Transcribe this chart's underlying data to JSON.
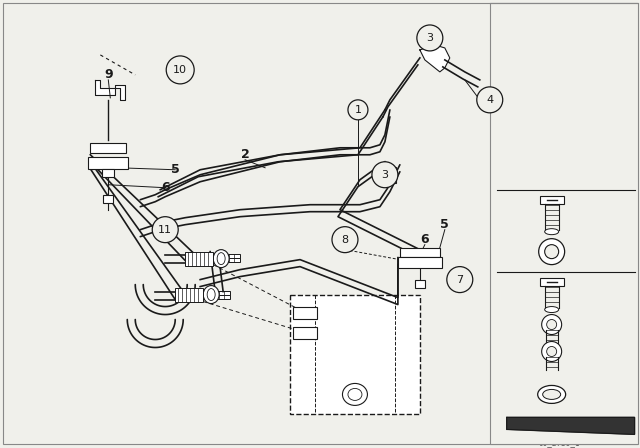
{
  "bg_color": "#f0f0eb",
  "line_color": "#1a1a1a",
  "label_color": "#1a1a1a",
  "circle_bg": "#f0f0eb",
  "circle_edge": "#1a1a1a",
  "figsize": [
    6.4,
    4.48
  ],
  "dpi": 100
}
